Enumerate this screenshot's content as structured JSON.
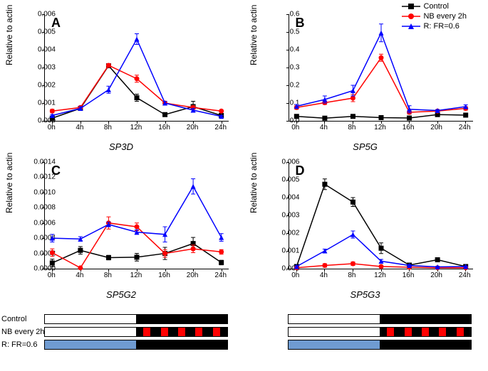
{
  "legend": {
    "items": [
      {
        "label": "Control",
        "color": "#000000",
        "marker": "square"
      },
      {
        "label": "NB every 2h",
        "color": "#ff0000",
        "marker": "circle"
      },
      {
        "label": "R: FR=0.6",
        "color": "#0000ff",
        "marker": "triangle"
      }
    ]
  },
  "axes": {
    "ylabel": "Relative to actin",
    "xticks": [
      "0h",
      "4h",
      "8h",
      "12h",
      "16h",
      "20h",
      "24h"
    ]
  },
  "panels": [
    {
      "letter": "A",
      "gene": "SP3D",
      "ylim": [
        0,
        0.006
      ],
      "yticks": [
        0,
        0.001,
        0.002,
        0.003,
        0.004,
        0.005,
        0.006
      ],
      "series": {
        "control": {
          "y": [
            0.00015,
            0.0007,
            0.0031,
            0.0013,
            0.00035,
            0.0008,
            0.0003
          ],
          "err": [
            0.0001,
            0.0001,
            0.0001,
            0.0002,
            0.0001,
            0.0003,
            8e-05
          ]
        },
        "nb": {
          "y": [
            0.00055,
            0.00075,
            0.00312,
            0.00237,
            0.001,
            0.00075,
            0.00055
          ],
          "err": [
            0.0001,
            5e-05,
            0.0001,
            0.0002,
            0.0001,
            0.0001,
            5e-05
          ]
        },
        "rfr": {
          "y": [
            0.0003,
            0.0007,
            0.00175,
            0.0046,
            0.001,
            0.0006,
            0.00025
          ],
          "err": [
            5e-05,
            0.0001,
            0.0002,
            0.0003,
            0.0001,
            0.0001,
            5e-05
          ]
        }
      }
    },
    {
      "letter": "B",
      "gene": "SP5G",
      "ylim": [
        0,
        0.6
      ],
      "yticks": [
        0,
        0.1,
        0.2,
        0.3,
        0.4,
        0.5,
        0.6
      ],
      "series": {
        "control": {
          "y": [
            0.025,
            0.015,
            0.025,
            0.018,
            0.016,
            0.035,
            0.032
          ],
          "err": [
            0.01,
            0.005,
            0.005,
            0.005,
            0.005,
            0.005,
            0.005
          ]
        },
        "nb": {
          "y": [
            0.075,
            0.102,
            0.128,
            0.355,
            0.048,
            0.055,
            0.07
          ],
          "err": [
            0.01,
            0.01,
            0.02,
            0.02,
            0.01,
            0.005,
            0.01
          ]
        },
        "rfr": {
          "y": [
            0.082,
            0.12,
            0.17,
            0.495,
            0.065,
            0.058,
            0.08
          ],
          "err": [
            0.01,
            0.02,
            0.03,
            0.05,
            0.02,
            0.005,
            0.01
          ]
        }
      }
    },
    {
      "letter": "C",
      "gene": "SP5G2",
      "ylim": [
        0,
        0.0014
      ],
      "yticks": [
        0,
        0.0002,
        0.0004,
        0.0006,
        0.0008,
        0.001,
        0.0012,
        0.0014
      ],
      "series": {
        "control": {
          "y": [
            7.5e-05,
            0.00024,
            0.000145,
            0.00015,
            0.0002,
            0.00033,
            8e-05
          ],
          "err": [
            5e-05,
            5e-05,
            3e-05,
            5e-05,
            8e-05,
            8e-05,
            3e-05
          ]
        },
        "nb": {
          "y": [
            0.00021,
            1e-05,
            0.0006,
            0.00055,
            0.0002,
            0.00026,
            0.00022
          ],
          "err": [
            5e-05,
            1e-05,
            8e-05,
            5e-05,
            5e-05,
            5e-05,
            3e-05
          ]
        },
        "rfr": {
          "y": [
            0.0004,
            0.00039,
            0.00058,
            0.00048,
            0.00045,
            0.00108,
            0.00041
          ],
          "err": [
            5e-05,
            3e-05,
            3e-05,
            3e-05,
            0.0001,
            0.0001,
            5e-05
          ]
        }
      }
    },
    {
      "letter": "D",
      "gene": "SP5G3",
      "ylim": [
        0,
        0.006
      ],
      "yticks": [
        0,
        0.001,
        0.002,
        0.003,
        0.004,
        0.005,
        0.006
      ],
      "series": {
        "control": {
          "y": [
            0.00012,
            0.00475,
            0.00375,
            0.00115,
            0.0002,
            0.0005,
            0.00012
          ],
          "err": [
            5e-05,
            0.0003,
            0.00025,
            0.0003,
            5e-05,
            5e-05,
            5e-05
          ]
        },
        "nb": {
          "y": [
            5e-05,
            0.00018,
            0.00028,
            0.00012,
            8e-05,
            5e-05,
            5e-05
          ],
          "err": [
            3e-05,
            0.0001,
            0.0001,
            5e-05,
            3e-05,
            3e-05,
            3e-05
          ]
        },
        "rfr": {
          "y": [
            0.00012,
            0.001,
            0.00192,
            0.00042,
            0.00018,
            0.0001,
            0.00012
          ],
          "err": [
            5e-05,
            0.0001,
            0.0002,
            0.0001,
            5e-05,
            3e-05,
            3e-05
          ]
        }
      }
    }
  ],
  "bars": {
    "labels": [
      "Control",
      "NB every 2h",
      "R: FR=0.6"
    ],
    "rows": [
      {
        "segments": [
          {
            "w": 0.5,
            "c": "#ffffff"
          },
          {
            "w": 0.5,
            "c": "#000000"
          }
        ]
      },
      {
        "segments": [
          {
            "w": 0.5,
            "c": "#ffffff"
          },
          {
            "w": 0.5,
            "c": "#000000"
          }
        ],
        "pulses": true,
        "pulse_color": "#ff0000"
      },
      {
        "segments": [
          {
            "w": 0.5,
            "c": "#6f9bd1"
          },
          {
            "w": 0.5,
            "c": "#000000"
          }
        ]
      }
    ]
  },
  "colors": {
    "control": "#000000",
    "nb": "#ff0000",
    "rfr": "#0000ff"
  },
  "markers": {
    "control": "square",
    "nb": "circle",
    "rfr": "triangle"
  }
}
